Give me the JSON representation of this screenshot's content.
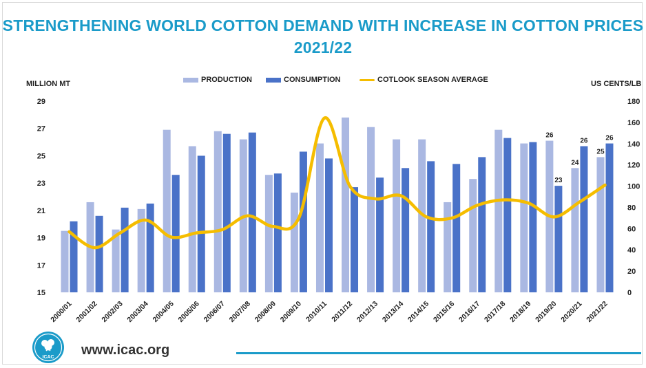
{
  "title_line1": "STRENGTHENING WORLD COTTON DEMAND WITH INCREASE IN COTTON PRICES",
  "title_line2": "2021/22",
  "left_axis_unit": "MILLION MT",
  "right_axis_unit": "US CENTS/LB",
  "footer_url": "www.icac.org",
  "logo_text": "ICAC",
  "colors": {
    "production": "#aab8e2",
    "consumption": "#4a72c8",
    "price_line": "#f5bd00",
    "title": "#1a9bc9",
    "footer_rule": "#1a9bc9"
  },
  "chart_data": {
    "type": "bar",
    "categories": [
      "2000/01",
      "2001/02",
      "2002/03",
      "2003/04",
      "2004/05",
      "2005/06",
      "2006/07",
      "2007/08",
      "2008/09",
      "2009/10",
      "2010/11",
      "2011/12",
      "2012/13",
      "2013/14",
      "2014/15",
      "2015/16",
      "2016/17",
      "2017/18",
      "2018/19",
      "2019/20",
      "2020/21",
      "2021/22"
    ],
    "series": [
      {
        "name": "PRODUCTION",
        "kind": "bar",
        "axis": "left",
        "values": [
          19.5,
          21.6,
          19.6,
          21.1,
          26.9,
          25.7,
          26.8,
          26.2,
          23.6,
          22.3,
          25.9,
          27.8,
          27.1,
          26.2,
          26.2,
          21.6,
          23.3,
          26.9,
          25.9,
          26.1,
          24.1,
          24.9
        ]
      },
      {
        "name": "CONSUMPTION",
        "kind": "bar",
        "axis": "left",
        "values": [
          20.2,
          20.6,
          21.2,
          21.5,
          23.6,
          25.0,
          26.6,
          26.7,
          23.7,
          25.3,
          24.8,
          22.7,
          23.4,
          24.1,
          24.6,
          24.4,
          24.9,
          26.3,
          26.0,
          22.8,
          25.7,
          25.9
        ]
      },
      {
        "name": "COTLOOK SEASON AVERAGE",
        "kind": "line",
        "axis": "right",
        "values": [
          57,
          42,
          56,
          68,
          52,
          56,
          59,
          72,
          62,
          70,
          164,
          100,
          88,
          91,
          71,
          70,
          82,
          87,
          84,
          71,
          85,
          101
        ]
      }
    ],
    "data_labels": [
      {
        "category": "2019/20",
        "series": "PRODUCTION",
        "text": "26"
      },
      {
        "category": "2019/20",
        "series": "CONSUMPTION",
        "text": "23"
      },
      {
        "category": "2020/21",
        "series": "PRODUCTION",
        "text": "24"
      },
      {
        "category": "2020/21",
        "series": "CONSUMPTION",
        "text": "26"
      },
      {
        "category": "2021/22",
        "series": "PRODUCTION",
        "text": "25"
      },
      {
        "category": "2021/22",
        "series": "CONSUMPTION",
        "text": "26"
      }
    ],
    "y_left": {
      "min": 15,
      "max": 29,
      "ticks": [
        "15",
        "17",
        "19",
        "21",
        "23",
        "25",
        "27",
        "29"
      ]
    },
    "y_right": {
      "min": 0,
      "max": 180,
      "ticks": [
        "0",
        "20",
        "40",
        "60",
        "80",
        "100",
        "120",
        "140",
        "160",
        "180"
      ]
    },
    "grid": false,
    "legend_position": "top-center"
  }
}
